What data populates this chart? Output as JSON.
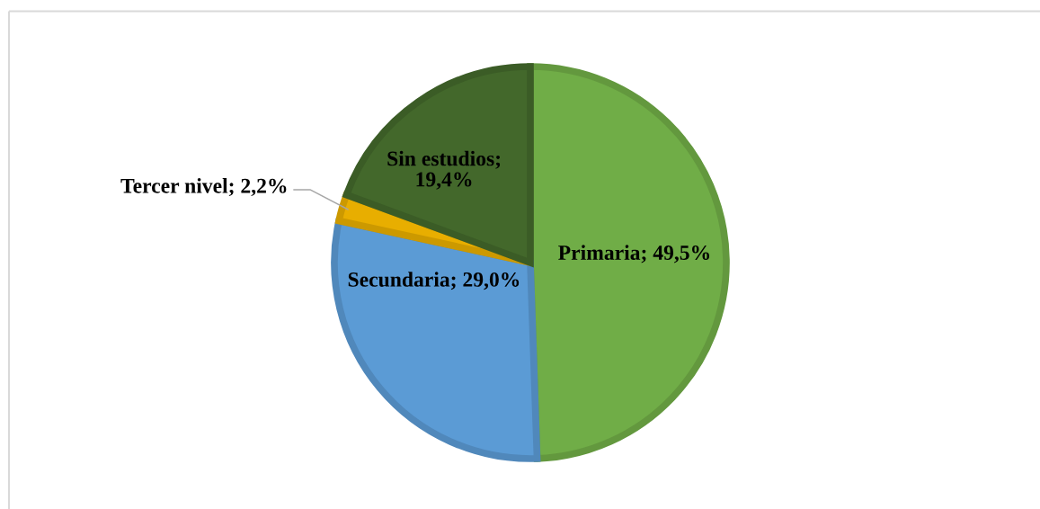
{
  "chart_data": {
    "type": "pie",
    "categories": [
      "Primaria",
      "Secundaria",
      "Tercer nivel",
      "Sin estudios"
    ],
    "values": [
      49.5,
      29.0,
      2.2,
      19.4
    ],
    "colors": [
      "#70ad47",
      "#5b9bd5",
      "#e8ae00",
      "#43682b"
    ],
    "value_labels": [
      "; 49,5%",
      "; 29,0%",
      "; 2,2%",
      "; 19,4%"
    ]
  }
}
